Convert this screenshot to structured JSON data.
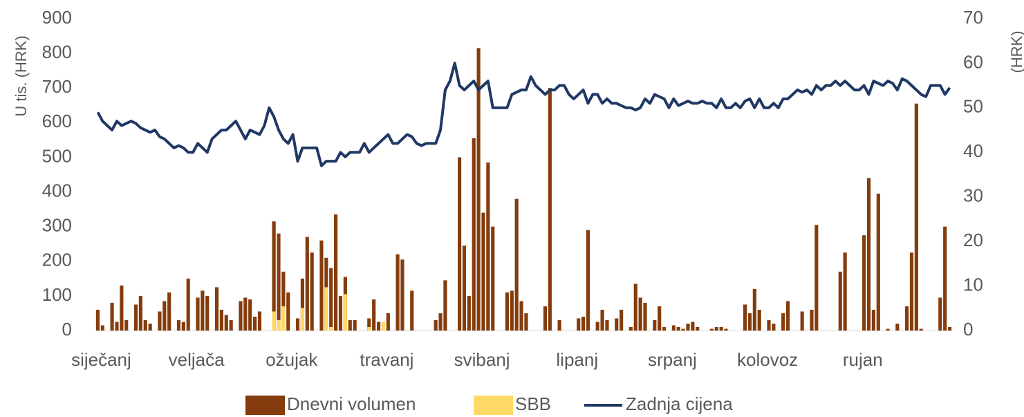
{
  "chart_data": {
    "type": "bar",
    "categories": [
      "siječanj",
      null,
      null,
      null,
      null,
      null,
      null,
      null,
      null,
      null,
      null,
      null,
      null,
      null,
      null,
      null,
      null,
      null,
      null,
      null,
      "veljača",
      null,
      null,
      null,
      null,
      null,
      null,
      null,
      null,
      null,
      null,
      null,
      null,
      null,
      null,
      null,
      null,
      null,
      null,
      null,
      "ožujak",
      null,
      null,
      null,
      null,
      null,
      null,
      null,
      null,
      null,
      null,
      null,
      null,
      null,
      null,
      null,
      null,
      null,
      null,
      null,
      "travanj",
      null,
      null,
      null,
      null,
      null,
      null,
      null,
      null,
      null,
      null,
      null,
      null,
      null,
      null,
      null,
      null,
      null,
      null,
      null,
      "svibanj",
      null,
      null,
      null,
      null,
      null,
      null,
      null,
      null,
      null,
      null,
      null,
      null,
      null,
      null,
      null,
      null,
      null,
      null,
      null,
      "lipanj",
      null,
      null,
      null,
      null,
      null,
      null,
      null,
      null,
      null,
      null,
      null,
      null,
      null,
      null,
      null,
      null,
      null,
      null,
      null,
      "srpanj",
      null,
      null,
      null,
      null,
      null,
      null,
      null,
      null,
      null,
      null,
      null,
      null,
      null,
      null,
      null,
      null,
      null,
      null,
      null,
      "kolovoz",
      null,
      null,
      null,
      null,
      null,
      null,
      null,
      null,
      null,
      null,
      null,
      null,
      null,
      null,
      null,
      null,
      null,
      null,
      null,
      "rujan",
      null,
      null,
      null,
      null,
      null,
      null,
      null,
      null,
      null,
      null,
      null,
      null,
      null,
      null,
      null,
      null,
      null,
      null,
      null
    ],
    "series": [
      {
        "name": "Dnevni volumen",
        "type": "bar",
        "color": "#843c0c",
        "values": [
          60,
          15,
          0,
          80,
          25,
          130,
          30,
          0,
          75,
          100,
          30,
          20,
          0,
          55,
          85,
          110,
          0,
          30,
          25,
          150,
          0,
          95,
          115,
          100,
          0,
          125,
          60,
          45,
          30,
          0,
          85,
          95,
          90,
          40,
          55,
          0,
          0,
          315,
          280,
          170,
          110,
          0,
          35,
          150,
          270,
          225,
          0,
          260,
          210,
          180,
          335,
          100,
          155,
          30,
          30,
          0,
          0,
          35,
          90,
          25,
          20,
          50,
          0,
          220,
          205,
          0,
          115,
          0,
          0,
          0,
          0,
          30,
          50,
          145,
          0,
          0,
          500,
          245,
          100,
          555,
          815,
          340,
          485,
          300,
          0,
          0,
          110,
          115,
          380,
          85,
          50,
          0,
          0,
          0,
          70,
          700,
          0,
          30,
          0,
          0,
          0,
          35,
          40,
          290,
          0,
          25,
          60,
          30,
          0,
          35,
          60,
          0,
          10,
          135,
          95,
          80,
          0,
          30,
          70,
          10,
          0,
          15,
          10,
          5,
          20,
          25,
          10,
          0,
          0,
          5,
          10,
          10,
          5,
          0,
          0,
          0,
          75,
          50,
          120,
          60,
          0,
          30,
          20,
          0,
          50,
          85,
          0,
          0,
          55,
          0,
          60,
          305,
          0,
          0,
          0,
          0,
          170,
          225,
          0,
          0,
          0,
          275,
          440,
          60,
          395,
          0,
          5,
          0,
          20,
          0,
          70,
          225,
          655,
          5,
          0,
          0,
          0,
          95,
          300,
          10
        ]
      },
      {
        "name": "SBB",
        "type": "bar",
        "color": "#ffd966",
        "values": [
          0,
          0,
          0,
          0,
          0,
          0,
          0,
          0,
          0,
          0,
          0,
          0,
          0,
          0,
          0,
          0,
          0,
          0,
          0,
          0,
          0,
          0,
          0,
          0,
          0,
          0,
          0,
          0,
          0,
          0,
          0,
          0,
          0,
          0,
          0,
          0,
          0,
          55,
          30,
          70,
          0,
          0,
          0,
          65,
          0,
          0,
          0,
          0,
          125,
          10,
          0,
          0,
          105,
          0,
          0,
          0,
          0,
          10,
          0,
          0,
          25,
          0,
          0,
          0,
          0,
          0,
          0,
          0,
          0,
          0,
          0,
          0,
          0,
          0,
          0,
          0,
          0,
          0,
          0,
          0,
          0,
          0,
          0,
          0,
          0,
          0,
          0,
          0,
          0,
          0,
          0,
          0,
          0,
          0,
          0,
          0,
          0,
          0,
          0,
          0,
          0,
          0,
          0,
          0,
          0,
          0,
          0,
          0,
          0,
          0,
          0,
          0,
          0,
          0,
          0,
          0,
          0,
          0,
          0,
          0,
          0,
          0,
          0,
          0,
          0,
          0,
          0,
          0,
          0,
          0,
          0,
          0,
          0,
          0,
          0,
          0,
          0,
          0,
          0,
          0,
          0,
          0,
          0,
          0,
          0,
          0,
          0,
          0,
          0,
          0,
          0,
          0,
          0,
          0,
          0,
          0,
          0,
          0,
          0,
          0,
          0,
          0,
          0,
          0,
          0,
          0,
          0,
          0,
          0,
          0,
          0,
          0,
          0,
          0,
          0,
          0,
          0,
          0,
          0,
          0
        ]
      },
      {
        "name": "Zadnja cijena",
        "type": "line",
        "axis": "y2",
        "color": "#1f3864",
        "values": [
          49,
          47,
          46,
          45,
          47,
          46,
          46.5,
          47,
          46.5,
          45.5,
          45,
          44.5,
          45,
          43.5,
          43,
          42,
          41,
          41.5,
          41,
          40,
          40,
          42,
          41,
          40,
          43,
          44,
          45,
          45,
          46,
          47,
          45,
          43,
          45,
          44.5,
          44,
          46,
          50,
          48,
          45,
          43,
          42,
          44,
          38,
          41,
          41,
          41,
          41,
          37,
          38,
          38,
          38,
          40,
          39,
          40,
          40,
          40,
          42,
          40,
          41,
          42,
          43,
          44,
          42,
          42,
          43,
          44,
          43.5,
          42,
          41.5,
          42,
          42,
          42,
          45,
          54,
          56,
          60,
          55,
          54,
          55,
          56,
          54,
          55,
          56,
          50,
          50,
          50,
          50,
          53,
          53.5,
          54,
          54,
          57,
          55,
          54,
          53,
          54,
          54,
          55,
          55,
          53,
          52,
          53,
          54,
          51,
          53,
          53,
          51,
          52,
          51,
          51,
          50.5,
          50,
          50,
          49.5,
          50,
          52,
          51,
          53,
          52.5,
          52,
          50,
          52,
          50.5,
          51,
          51.5,
          51,
          51,
          51.5,
          51,
          51,
          50,
          52,
          50,
          50,
          51,
          50,
          51.5,
          52,
          50,
          52,
          50,
          50,
          51,
          50,
          52,
          52,
          53,
          54,
          53.5,
          54,
          53,
          55,
          54,
          55,
          55,
          56,
          55,
          56,
          55,
          54,
          54,
          55,
          53,
          56,
          55.5,
          55,
          56,
          55.5,
          54,
          56.5,
          56,
          55,
          54,
          53,
          52.5,
          55,
          55,
          55,
          53,
          54.5
        ]
      }
    ],
    "ylabel": "U tis. (HRK)",
    "y2label": "(HRK)",
    "ylim": [
      0,
      900
    ],
    "yticks": [
      0,
      100,
      200,
      300,
      400,
      500,
      600,
      700,
      800,
      900
    ],
    "y2lim": [
      0,
      70
    ],
    "y2ticks": [
      0,
      10,
      20,
      30,
      40,
      50,
      60,
      70
    ],
    "legend": "bottom"
  }
}
